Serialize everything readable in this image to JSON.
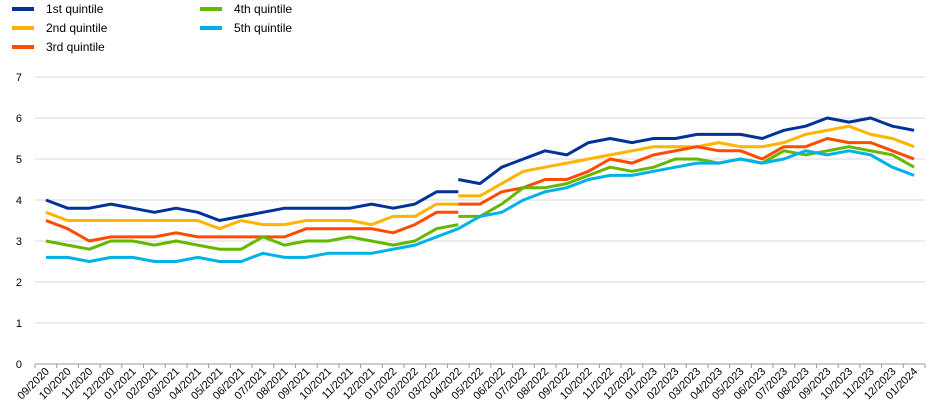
{
  "chart_data": {
    "type": "line",
    "title": "",
    "xlabel": "",
    "ylabel": "",
    "ylim": [
      0,
      7
    ],
    "yticks": [
      0,
      1,
      2,
      3,
      4,
      5,
      6,
      7
    ],
    "grid": "horizontal",
    "legend_position": "top-left",
    "categories": [
      "09/2020",
      "10/2020",
      "11/2020",
      "12/2020",
      "01/2021",
      "02/2021",
      "03/2021",
      "04/2021",
      "05/2021",
      "06/2021",
      "07/2021",
      "08/2021",
      "09/2021",
      "10/2021",
      "11/2021",
      "12/2021",
      "01/2022",
      "02/2022",
      "03/2022",
      "04/2022",
      "05/2022",
      "06/2022",
      "07/2022",
      "08/2022",
      "09/2022",
      "10/2022",
      "11/2022",
      "12/2022",
      "01/2023",
      "02/2023",
      "03/2023",
      "04/2023",
      "05/2023",
      "06/2023",
      "07/2023",
      "08/2023",
      "09/2023",
      "10/2023",
      "11/2023",
      "12/2023",
      "01/2024"
    ],
    "break_after_index": 19,
    "series": [
      {
        "name": "1st quintile",
        "color": "#003299",
        "values": [
          4.0,
          3.8,
          3.8,
          3.9,
          3.8,
          3.7,
          3.8,
          3.7,
          3.5,
          3.6,
          3.7,
          3.8,
          3.8,
          3.8,
          3.8,
          3.9,
          3.8,
          3.9,
          4.2,
          4.2,
          4.4,
          4.8,
          5.0,
          5.2,
          5.1,
          5.4,
          5.5,
          5.4,
          5.5,
          5.5,
          5.6,
          5.6,
          5.6,
          5.5,
          5.7,
          5.8,
          6.0,
          5.9,
          6.0,
          5.8,
          5.7
        ],
        "new_series_first": 4.5
      },
      {
        "name": "2nd quintile",
        "color": "#FFB400",
        "values": [
          3.7,
          3.5,
          3.5,
          3.5,
          3.5,
          3.5,
          3.5,
          3.5,
          3.3,
          3.5,
          3.4,
          3.4,
          3.5,
          3.5,
          3.5,
          3.4,
          3.6,
          3.6,
          3.9,
          3.9,
          4.1,
          4.4,
          4.7,
          4.8,
          4.9,
          5.0,
          5.1,
          5.2,
          5.3,
          5.3,
          5.3,
          5.4,
          5.3,
          5.3,
          5.4,
          5.6,
          5.7,
          5.8,
          5.6,
          5.5,
          5.3
        ],
        "new_series_first": 4.1
      },
      {
        "name": "3rd quintile",
        "color": "#FF4B00",
        "values": [
          3.5,
          3.3,
          3.0,
          3.1,
          3.1,
          3.1,
          3.2,
          3.1,
          3.1,
          3.1,
          3.1,
          3.1,
          3.3,
          3.3,
          3.3,
          3.3,
          3.2,
          3.4,
          3.7,
          3.7,
          3.9,
          4.2,
          4.3,
          4.5,
          4.5,
          4.7,
          5.0,
          4.9,
          5.1,
          5.2,
          5.3,
          5.2,
          5.2,
          5.0,
          5.3,
          5.3,
          5.5,
          5.4,
          5.4,
          5.2,
          5.0
        ],
        "new_series_first": 3.9
      },
      {
        "name": "4th quintile",
        "color": "#65B800",
        "values": [
          3.0,
          2.9,
          2.8,
          3.0,
          3.0,
          2.9,
          3.0,
          2.9,
          2.8,
          2.8,
          3.1,
          2.9,
          3.0,
          3.0,
          3.1,
          3.0,
          2.9,
          3.0,
          3.3,
          3.4,
          3.6,
          3.9,
          4.3,
          4.3,
          4.4,
          4.6,
          4.8,
          4.7,
          4.8,
          5.0,
          5.0,
          4.9,
          5.0,
          4.9,
          5.2,
          5.1,
          5.2,
          5.3,
          5.2,
          5.1,
          4.8
        ],
        "new_series_first": 3.6
      },
      {
        "name": "5th quintile",
        "color": "#00B1EA",
        "values": [
          2.6,
          2.6,
          2.5,
          2.6,
          2.6,
          2.5,
          2.5,
          2.6,
          2.5,
          2.5,
          2.7,
          2.6,
          2.6,
          2.7,
          2.7,
          2.7,
          2.8,
          2.9,
          3.1,
          3.3,
          3.6,
          3.7,
          4.0,
          4.2,
          4.3,
          4.5,
          4.6,
          4.6,
          4.7,
          4.8,
          4.9,
          4.9,
          5.0,
          4.9,
          5.0,
          5.2,
          5.1,
          5.2,
          5.1,
          4.8,
          4.6
        ],
        "new_series_first": null
      }
    ]
  }
}
